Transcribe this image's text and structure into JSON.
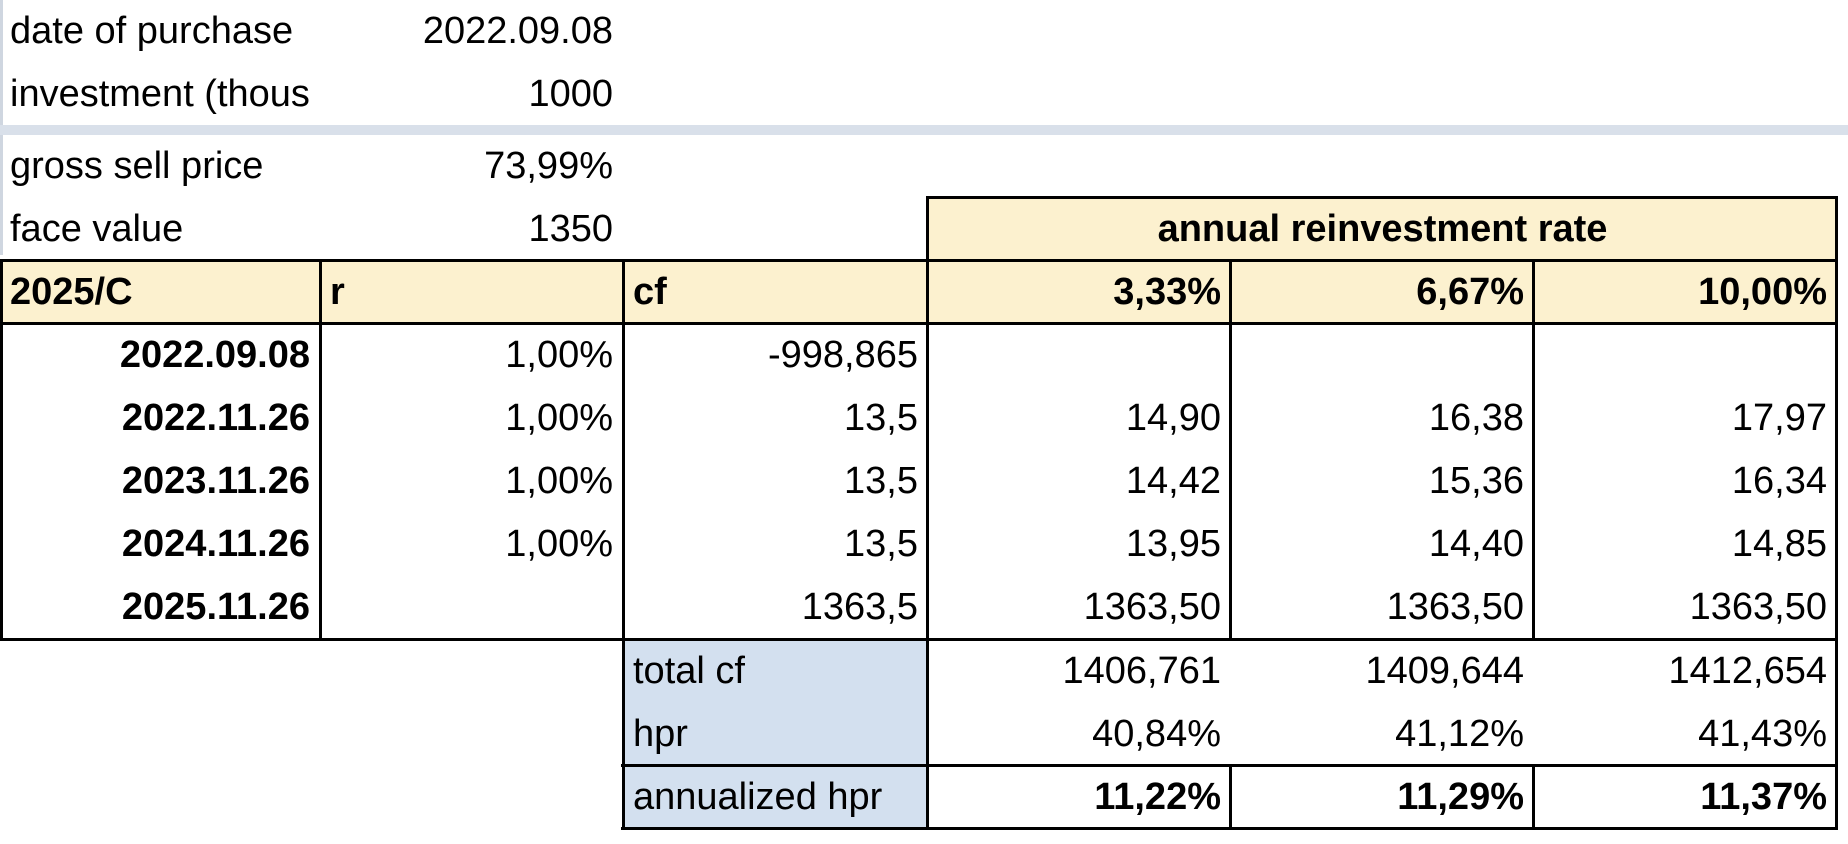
{
  "inputs": {
    "date_of_purchase": {
      "label": "date of purchase",
      "value": "2022.09.08"
    },
    "investment": {
      "label": "investment (thous",
      "value": "1000"
    },
    "gross_sell_price": {
      "label": "gross sell price",
      "value": "73,99%"
    },
    "face_value": {
      "label": "face value",
      "value": "1350"
    }
  },
  "table": {
    "group_header": "annual reinvestment rate",
    "headers": {
      "col1": "2025/C",
      "col2": "r",
      "col3": "cf",
      "rate1": "3,33%",
      "rate2": "6,67%",
      "rate3": "10,00%"
    },
    "rows": [
      {
        "date": "2022.09.08",
        "r": "1,00%",
        "cf": "-998,865",
        "v1": "",
        "v2": "",
        "v3": ""
      },
      {
        "date": "2022.11.26",
        "r": "1,00%",
        "cf": "13,5",
        "v1": "14,90",
        "v2": "16,38",
        "v3": "17,97"
      },
      {
        "date": "2023.11.26",
        "r": "1,00%",
        "cf": "13,5",
        "v1": "14,42",
        "v2": "15,36",
        "v3": "16,34"
      },
      {
        "date": "2024.11.26",
        "r": "1,00%",
        "cf": "13,5",
        "v1": "13,95",
        "v2": "14,40",
        "v3": "14,85"
      },
      {
        "date": "2025.11.26",
        "r": "",
        "cf": "1363,5",
        "v1": "1363,50",
        "v2": "1363,50",
        "v3": "1363,50"
      }
    ],
    "summary": {
      "total_cf": {
        "label": "total cf",
        "v1": "1406,761",
        "v2": "1409,644",
        "v3": "1412,654"
      },
      "hpr": {
        "label": "hpr",
        "v1": "40,84%",
        "v2": "41,12%",
        "v3": "41,43%"
      },
      "annualized_hpr": {
        "label": "annualized hpr",
        "v1": "11,22%",
        "v2": "11,29%",
        "v3": "11,37%"
      }
    }
  },
  "colors": {
    "header_fill": "#fcf1cf",
    "label_fill": "#d3e0ef",
    "band": "#d9e0ea"
  }
}
